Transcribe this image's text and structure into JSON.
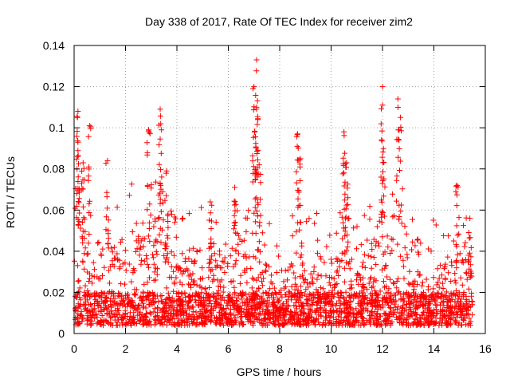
{
  "chart_data": {
    "type": "scatter",
    "title": "Day 338 of 2017, Rate Of TEC Index for receiver zim2",
    "xlabel": "GPS time / hours",
    "ylabel": "ROTI / TECUs",
    "xlim": [
      0,
      16
    ],
    "ylim": [
      0,
      0.14
    ],
    "xticks": [
      0,
      2,
      4,
      6,
      8,
      10,
      12,
      14,
      16
    ],
    "yticks": [
      0,
      0.02,
      0.04,
      0.06,
      0.08,
      0.1,
      0.12,
      0.14
    ],
    "xtick_labels": [
      "0",
      "2",
      "4",
      "6",
      "8",
      "10",
      "12",
      "14",
      "16"
    ],
    "ytick_labels": [
      "0",
      "0.02",
      "0.04",
      "0.06",
      "0.08",
      "0.1",
      "0.12",
      "0.14"
    ],
    "grid": true,
    "marker": "+",
    "color": "#ff0000",
    "data_range_x": [
      0,
      15.5
    ],
    "series": [
      {
        "name": "ROTI",
        "notable_points": [
          {
            "x": 0.15,
            "y": 0.108
          },
          {
            "x": 0.15,
            "y": 0.093
          },
          {
            "x": 0.35,
            "y": 0.083
          },
          {
            "x": 0.6,
            "y": 0.101
          },
          {
            "x": 1.3,
            "y": 0.084
          },
          {
            "x": 2.9,
            "y": 0.099
          },
          {
            "x": 3.35,
            "y": 0.109
          },
          {
            "x": 3.4,
            "y": 0.099
          },
          {
            "x": 3.6,
            "y": 0.079
          },
          {
            "x": 5.3,
            "y": 0.064
          },
          {
            "x": 6.25,
            "y": 0.071
          },
          {
            "x": 7.0,
            "y": 0.12
          },
          {
            "x": 7.1,
            "y": 0.133
          },
          {
            "x": 7.1,
            "y": 0.11
          },
          {
            "x": 7.2,
            "y": 0.082
          },
          {
            "x": 8.7,
            "y": 0.097
          },
          {
            "x": 8.8,
            "y": 0.085
          },
          {
            "x": 10.5,
            "y": 0.098
          },
          {
            "x": 10.6,
            "y": 0.083
          },
          {
            "x": 12.0,
            "y": 0.12
          },
          {
            "x": 12.0,
            "y": 0.111
          },
          {
            "x": 12.6,
            "y": 0.114
          },
          {
            "x": 12.7,
            "y": 0.105
          },
          {
            "x": 14.9,
            "y": 0.072
          },
          {
            "x": 15.4,
            "y": 0.056
          }
        ]
      }
    ]
  }
}
